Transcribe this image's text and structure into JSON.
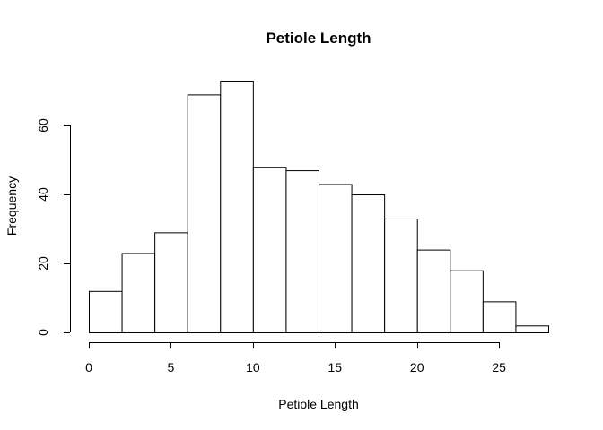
{
  "chart_data": {
    "type": "bar",
    "title": "Petiole Length",
    "xlabel": "Petiole Length",
    "ylabel": "Frequency",
    "bin_edges": [
      0,
      2,
      4,
      6,
      8,
      10,
      12,
      14,
      16,
      18,
      20,
      22,
      24,
      26,
      28
    ],
    "values": [
      12,
      23,
      29,
      69,
      73,
      48,
      47,
      43,
      40,
      33,
      24,
      18,
      9,
      2
    ],
    "xlim": [
      0,
      28
    ],
    "ylim": [
      0,
      73
    ],
    "x_ticks": [
      0,
      5,
      10,
      15,
      20,
      25
    ],
    "y_ticks": [
      0,
      20,
      40,
      60
    ],
    "grid": false,
    "legend": "none",
    "colors": {
      "bar_fill": "#ffffff",
      "bar_stroke": "#000000"
    }
  }
}
